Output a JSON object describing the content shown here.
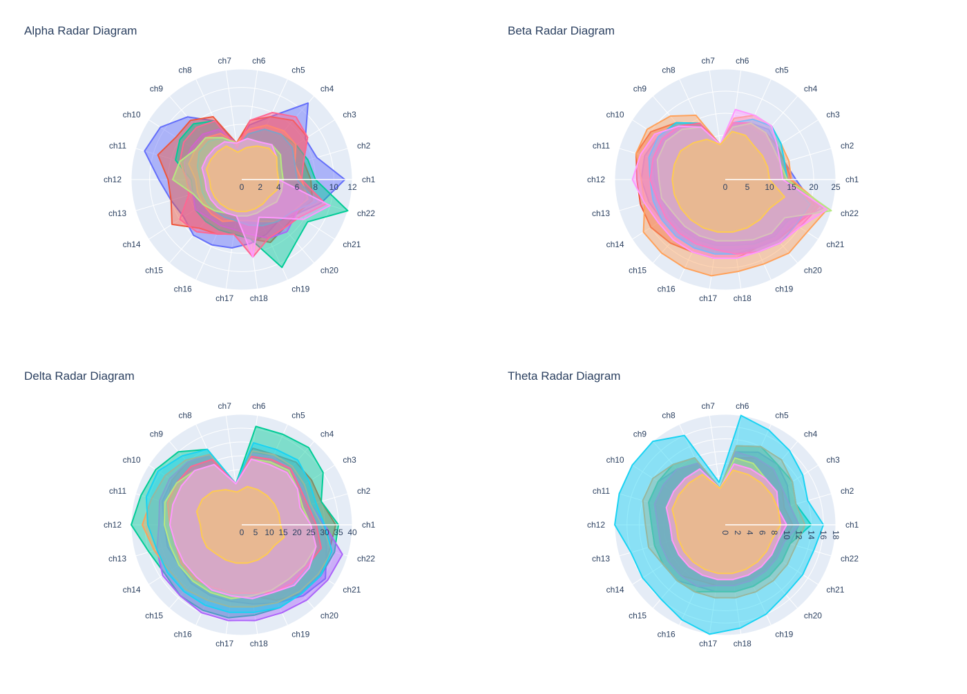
{
  "channels": [
    "ch1",
    "ch2",
    "ch3",
    "ch4",
    "ch5",
    "ch6",
    "ch7",
    "ch8",
    "ch9",
    "ch10",
    "ch11",
    "ch12",
    "ch13",
    "ch14",
    "ch15",
    "ch16",
    "ch17",
    "ch18",
    "ch19",
    "ch20",
    "ch21",
    "ch22"
  ],
  "colors": {
    "bg_polar": "#e5ecf6",
    "grid": "#ffffff",
    "text": "#2a3f5f",
    "palette": [
      "#636efa",
      "#EF553B",
      "#00cc96",
      "#ab63fa",
      "#FFA15A",
      "#19d3f3",
      "#FF6692",
      "#B6E880",
      "#FF97FF",
      "#FECB52"
    ]
  },
  "chart_data": [
    {
      "type": "radar",
      "title": "Alpha Radar Diagram",
      "radial_range": [
        0,
        12
      ],
      "radial_ticks": [
        0,
        2,
        4,
        6,
        8,
        10,
        12
      ],
      "grid": true,
      "series": [
        {
          "values": [
            11.2,
            8.5,
            8.2,
            11.0,
            7.5,
            6.0,
            4.0,
            7.0,
            9.0,
            10.5,
            11.0,
            9.0,
            8.0,
            7.5,
            8.0,
            7.8,
            7.5,
            7.0,
            6.5,
            6.0,
            7.0,
            9.0
          ]
        },
        {
          "values": [
            7.5,
            7.0,
            8.5,
            8.5,
            7.5,
            6.5,
            4.0,
            7.5,
            8.5,
            8.5,
            9.5,
            8.0,
            8.0,
            9.0,
            7.0,
            6.5,
            6.0,
            6.5,
            7.5,
            7.0,
            7.0,
            8.0
          ]
        },
        {
          "values": [
            8.0,
            7.5,
            7.0,
            6.5,
            6.0,
            5.0,
            3.5,
            7.0,
            8.0,
            8.0,
            7.5,
            5.5,
            5.5,
            6.0,
            6.0,
            6.0,
            6.0,
            6.5,
            10.5,
            9.0,
            8.5,
            12.5
          ]
        },
        {
          "values": [
            6.0,
            6.0,
            6.5,
            6.5,
            6.0,
            5.5,
            4.0,
            6.0,
            6.5,
            6.5,
            6.5,
            6.0,
            5.5,
            6.0,
            5.5,
            5.5,
            5.5,
            6.0,
            7.0,
            7.5,
            7.0,
            7.0
          ]
        },
        {
          "values": [
            6.5,
            6.0,
            7.0,
            7.0,
            6.5,
            5.5,
            4.0,
            5.5,
            6.0,
            6.0,
            6.0,
            5.0,
            5.0,
            5.0,
            5.0,
            5.0,
            4.5,
            4.5,
            5.0,
            6.0,
            6.5,
            7.5
          ]
        },
        {
          "values": [
            6.0,
            6.0,
            6.5,
            6.5,
            6.0,
            5.0,
            3.5,
            5.0,
            5.5,
            5.5,
            5.0,
            4.5,
            4.5,
            4.5,
            4.5,
            4.5,
            4.5,
            5.0,
            5.5,
            6.0,
            6.5,
            8.5
          ]
        },
        {
          "values": [
            6.5,
            7.0,
            8.5,
            9.0,
            8.0,
            6.5,
            3.5,
            7.0,
            7.5,
            7.5,
            7.0,
            6.0,
            6.0,
            8.0,
            7.5,
            6.5,
            6.0,
            8.5,
            7.0,
            7.0,
            7.5,
            9.5
          ]
        },
        {
          "values": [
            4.5,
            4.5,
            5.0,
            5.0,
            4.5,
            4.5,
            4.0,
            5.0,
            6.0,
            6.0,
            7.0,
            7.5,
            5.5,
            5.0,
            4.5,
            4.0,
            4.0,
            4.0,
            4.0,
            4.0,
            4.5,
            4.5
          ]
        },
        {
          "values": [
            4.0,
            4.0,
            4.5,
            5.0,
            4.5,
            4.5,
            4.0,
            4.5,
            4.5,
            4.5,
            4.5,
            4.0,
            4.0,
            4.0,
            4.0,
            4.0,
            4.0,
            8.5,
            4.5,
            5.5,
            8.0,
            10.0
          ]
        },
        {
          "values": [
            4.0,
            4.0,
            4.5,
            4.5,
            4.0,
            3.5,
            3.0,
            4.0,
            4.0,
            4.0,
            4.0,
            3.5,
            3.5,
            3.5,
            3.5,
            3.5,
            3.5,
            3.5,
            3.5,
            3.5,
            3.5,
            4.0
          ]
        }
      ]
    },
    {
      "type": "radar",
      "title": "Beta Radar Diagram",
      "radial_range": [
        0,
        25
      ],
      "radial_ticks": [
        0,
        5,
        10,
        15,
        20,
        25
      ],
      "grid": true,
      "series": [
        {
          "values": [
            16,
            14,
            14,
            15,
            14,
            12,
            8,
            14,
            17,
            18,
            19,
            19,
            18,
            17,
            17,
            17,
            17,
            17,
            17,
            18,
            19,
            21
          ]
        },
        {
          "values": [
            15,
            14,
            14,
            14,
            14,
            13,
            8,
            14,
            17,
            20,
            21,
            20,
            20,
            20,
            19,
            18,
            18,
            18,
            17,
            18,
            19,
            22
          ]
        },
        {
          "values": [
            14,
            13,
            13,
            13,
            13,
            12,
            8,
            13,
            15,
            17,
            17,
            16,
            15,
            15,
            15,
            15,
            15,
            15,
            16,
            17,
            17,
            22
          ]
        },
        {
          "values": [
            14,
            13,
            13,
            13,
            13,
            13,
            8,
            13,
            15,
            17,
            17,
            17,
            17,
            17,
            17,
            16,
            16,
            16,
            17,
            18,
            18,
            23
          ]
        },
        {
          "values": [
            15,
            15,
            15,
            16,
            16,
            14,
            8,
            16,
            19,
            21,
            21,
            19,
            19,
            22,
            22,
            22,
            22,
            21,
            21,
            22,
            22,
            24
          ]
        },
        {
          "values": [
            14,
            14,
            15,
            16,
            15,
            13,
            8,
            14,
            17,
            18,
            18,
            17,
            17,
            17,
            17,
            17,
            17,
            17,
            18,
            19,
            19,
            20
          ]
        },
        {
          "values": [
            14,
            13,
            13,
            14,
            14,
            13,
            8,
            14,
            16,
            17,
            17,
            17,
            16,
            16,
            16,
            16,
            16,
            17,
            18,
            19,
            20,
            22
          ]
        },
        {
          "values": [
            14,
            13,
            13,
            14,
            14,
            12,
            8,
            13,
            15,
            16,
            16,
            15,
            15,
            14,
            14,
            14,
            14,
            14,
            15,
            16,
            16,
            25
          ]
        },
        {
          "values": [
            13,
            13,
            14,
            16,
            16,
            16,
            8,
            13,
            16,
            19,
            20,
            21,
            19,
            18,
            18,
            18,
            18,
            18,
            18,
            19,
            20,
            24
          ]
        },
        {
          "values": [
            10,
            10,
            10,
            10,
            11,
            11,
            8,
            10,
            11,
            12,
            12,
            12,
            12,
            12,
            12,
            12,
            12,
            12,
            12,
            12,
            12,
            14
          ]
        }
      ]
    },
    {
      "type": "radar",
      "title": "Delta Radar Diagram",
      "radial_range": [
        0,
        40
      ],
      "radial_ticks": [
        0,
        5,
        10,
        15,
        20,
        25,
        30,
        35,
        40
      ],
      "grid": true,
      "series": [
        {
          "values": [
            30,
            26,
            27,
            28,
            27,
            27,
            15,
            28,
            30,
            30,
            30,
            28,
            28,
            27,
            28,
            28,
            28,
            29,
            31,
            34,
            36,
            32
          ]
        },
        {
          "values": [
            34,
            30,
            30,
            30,
            28,
            28,
            15,
            28,
            30,
            30,
            28,
            26,
            26,
            26,
            26,
            26,
            26,
            26,
            30,
            33,
            34,
            33
          ]
        },
        {
          "values": [
            35,
            30,
            35,
            37,
            36,
            36,
            15,
            30,
            35,
            37,
            38,
            40,
            35,
            33,
            34,
            34,
            34,
            33,
            33,
            33,
            34,
            35
          ]
        },
        {
          "values": [
            30,
            26,
            26,
            27,
            27,
            26,
            15,
            28,
            30,
            31,
            31,
            30,
            32,
            34,
            34,
            35,
            35,
            35,
            35,
            36,
            37,
            38
          ]
        },
        {
          "values": [
            29,
            26,
            27,
            28,
            28,
            27,
            15,
            28,
            31,
            33,
            34,
            36,
            33,
            31,
            31,
            30,
            30,
            30,
            31,
            32,
            33,
            34
          ]
        },
        {
          "values": [
            30,
            28,
            29,
            31,
            30,
            30,
            15,
            30,
            33,
            36,
            36,
            34,
            32,
            32,
            32,
            32,
            32,
            32,
            33,
            33,
            34,
            34
          ]
        },
        {
          "values": [
            27,
            25,
            25,
            27,
            26,
            25,
            15,
            26,
            28,
            28,
            28,
            26,
            25,
            26,
            26,
            25,
            25,
            25,
            27,
            28,
            28,
            30
          ]
        },
        {
          "values": [
            25,
            23,
            24,
            26,
            25,
            24,
            15,
            24,
            26,
            28,
            29,
            28,
            27,
            27,
            27,
            27,
            27,
            26,
            26,
            26,
            27,
            28
          ]
        },
        {
          "values": [
            25,
            22,
            24,
            25,
            24,
            24,
            15,
            24,
            26,
            26,
            26,
            26,
            25,
            25,
            25,
            26,
            26,
            27,
            27,
            29,
            29,
            28
          ]
        },
        {
          "values": [
            14,
            14,
            14,
            14,
            14,
            14,
            12,
            14,
            16,
            17,
            17,
            15,
            15,
            15,
            14,
            14,
            14,
            14,
            14,
            14,
            14,
            16
          ]
        }
      ]
    },
    {
      "type": "radar",
      "title": "Theta Radar Diagram",
      "radial_range": [
        0,
        18
      ],
      "radial_ticks": [
        0,
        2,
        4,
        6,
        8,
        10,
        12,
        14,
        16,
        18
      ],
      "grid": true,
      "series": [
        {
          "values": [
            12,
            11,
            12,
            13,
            13,
            12,
            6,
            11,
            12,
            13,
            13,
            12,
            12,
            12,
            12,
            11,
            11,
            11,
            11,
            11,
            11,
            11
          ]
        },
        {
          "values": [
            11,
            10,
            11,
            12,
            12,
            11,
            6,
            11,
            12,
            12,
            12,
            11,
            11,
            11,
            11,
            10,
            10,
            10,
            10,
            10,
            10,
            10
          ]
        },
        {
          "values": [
            14,
            12,
            13,
            13,
            14,
            13,
            6,
            12,
            13,
            13,
            13,
            12,
            12,
            12,
            12,
            12,
            11,
            11,
            11,
            11,
            11,
            11
          ]
        },
        {
          "values": [
            12,
            11,
            11,
            12,
            12,
            12,
            6,
            11,
            12,
            12,
            12,
            11,
            11,
            11,
            11,
            11,
            10,
            10,
            10,
            10,
            10,
            10
          ]
        },
        {
          "values": [
            13,
            12,
            13,
            14,
            14,
            13,
            6,
            12,
            13,
            14,
            14,
            13,
            13,
            12,
            12,
            12,
            12,
            12,
            12,
            12,
            12,
            12
          ]
        },
        {
          "values": [
            16,
            14,
            15,
            16,
            17,
            18,
            7,
            16,
            18,
            19,
            19,
            18,
            16,
            16,
            16,
            17,
            18,
            17,
            16,
            15,
            15,
            15
          ]
        },
        {
          "values": [
            10,
            9,
            10,
            10,
            10,
            10,
            6,
            9,
            10,
            10,
            10,
            9,
            9,
            9,
            9,
            9,
            9,
            9,
            9,
            9,
            9,
            9
          ]
        },
        {
          "values": [
            9,
            9,
            10,
            10,
            11,
            11,
            6,
            10,
            10,
            10,
            10,
            9,
            9,
            9,
            9,
            9,
            9,
            9,
            9,
            9,
            9,
            9
          ]
        },
        {
          "values": [
            10,
            9,
            10,
            10,
            10,
            10,
            6,
            10,
            10,
            10,
            10,
            9,
            9,
            9,
            9,
            9,
            9,
            9,
            9,
            9,
            9,
            9
          ]
        },
        {
          "values": [
            9,
            9,
            9,
            9,
            9,
            9,
            6,
            9,
            9,
            9,
            9,
            8,
            8,
            8,
            8,
            8,
            8,
            8,
            8,
            8,
            8,
            8
          ]
        }
      ]
    }
  ]
}
